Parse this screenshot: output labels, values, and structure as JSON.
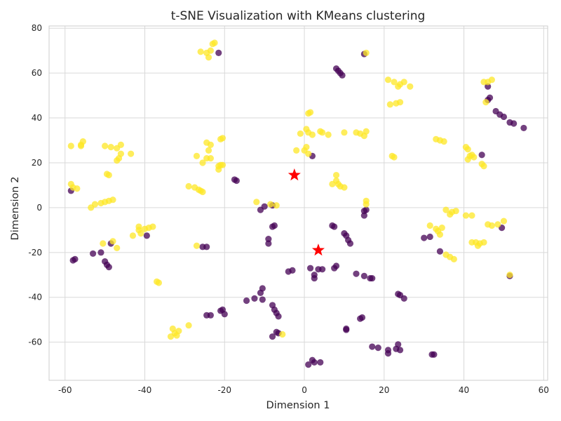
{
  "chart_data": {
    "type": "scatter",
    "title": "t-SNE Visualization with KMeans clustering",
    "xlabel": "Dimension 1",
    "ylabel": "Dimension 2",
    "xlim": [
      -64,
      61
    ],
    "ylim": [
      -77,
      81
    ],
    "xticks": [
      -60,
      -40,
      -20,
      0,
      20,
      40,
      60
    ],
    "yticks": [
      -60,
      -40,
      -20,
      0,
      20,
      40,
      60,
      80
    ],
    "grid": true,
    "colors": {
      "cluster_0": "#440154",
      "cluster_1": "#fde725",
      "centroid": "#ff0000",
      "grid": "#d9d9d9"
    },
    "series": [
      {
        "cluster": 0,
        "color": "#440154",
        "points": [
          [
            -21.5,
            69
          ],
          [
            8,
            62
          ],
          [
            8.5,
            61
          ],
          [
            9,
            60
          ],
          [
            9.5,
            59
          ],
          [
            15,
            68.5
          ],
          [
            46,
            54
          ],
          [
            46,
            48
          ],
          [
            46.5,
            49
          ],
          [
            48,
            43
          ],
          [
            49,
            41.5
          ],
          [
            50,
            40.5
          ],
          [
            51.5,
            38
          ],
          [
            52.5,
            37.5
          ],
          [
            55,
            35.5
          ],
          [
            44.5,
            23.5
          ],
          [
            2,
            23
          ],
          [
            -58.5,
            7.5
          ],
          [
            -17.5,
            12.5
          ],
          [
            -17,
            12
          ],
          [
            -11,
            -1
          ],
          [
            -10,
            0.5
          ],
          [
            -8,
            1
          ],
          [
            15,
            -1.5
          ],
          [
            15,
            -3.5
          ],
          [
            15.5,
            -1
          ],
          [
            -48.5,
            -16
          ],
          [
            -39.5,
            -12.5
          ],
          [
            -53,
            -20.5
          ],
          [
            -51,
            -20
          ],
          [
            -58,
            -23.5
          ],
          [
            -57.5,
            -23
          ],
          [
            -50,
            -24
          ],
          [
            -49.5,
            -25.5
          ],
          [
            -49,
            -26.5
          ],
          [
            -25.5,
            -17.5
          ],
          [
            -24.5,
            -17.5
          ],
          [
            -9,
            -14
          ],
          [
            -9,
            -16
          ],
          [
            -8,
            -8.5
          ],
          [
            -7.5,
            -8
          ],
          [
            7,
            -8
          ],
          [
            7.5,
            -8.5
          ],
          [
            10,
            -11.5
          ],
          [
            10.5,
            -12.5
          ],
          [
            11,
            -14.5
          ],
          [
            11.5,
            -16
          ],
          [
            30,
            -13.5
          ],
          [
            31.5,
            -13
          ],
          [
            34,
            -19.5
          ],
          [
            49.5,
            -9
          ],
          [
            -4,
            -28.5
          ],
          [
            -3,
            -28
          ],
          [
            1.5,
            -27
          ],
          [
            2.5,
            -30
          ],
          [
            2.5,
            -31.5
          ],
          [
            3.5,
            -27.5
          ],
          [
            4.5,
            -27.5
          ],
          [
            7.5,
            -27
          ],
          [
            8,
            -26
          ],
          [
            13,
            -29.5
          ],
          [
            15,
            -30.5
          ],
          [
            16.5,
            -31.5
          ],
          [
            17,
            -31.5
          ],
          [
            23.5,
            -38.5
          ],
          [
            24,
            -39
          ],
          [
            25,
            -40.5
          ],
          [
            51.5,
            -30.5
          ],
          [
            -14.5,
            -41.5
          ],
          [
            -12.5,
            -40.5
          ],
          [
            -11,
            -38
          ],
          [
            -10.5,
            -36
          ],
          [
            -10.5,
            -41
          ],
          [
            -8,
            -43.5
          ],
          [
            -7.5,
            -45.5
          ],
          [
            -7,
            -47
          ],
          [
            -6.5,
            -48.5
          ],
          [
            -21,
            -46
          ],
          [
            -20.5,
            -45.5
          ],
          [
            -20,
            -47.5
          ],
          [
            -24.5,
            -48
          ],
          [
            -23.5,
            -48
          ],
          [
            -8,
            -57.5
          ],
          [
            -7,
            -55.5
          ],
          [
            -6.5,
            -56
          ],
          [
            10.5,
            -54
          ],
          [
            10.5,
            -54.5
          ],
          [
            14,
            -49.5
          ],
          [
            14.5,
            -49
          ],
          [
            17,
            -62
          ],
          [
            18.5,
            -62.5
          ],
          [
            21,
            -63.5
          ],
          [
            21,
            -65
          ],
          [
            23,
            -63
          ],
          [
            23.5,
            -61
          ],
          [
            24,
            -63.5
          ],
          [
            32,
            -65.5
          ],
          [
            32.5,
            -65.5
          ],
          [
            1,
            -70
          ],
          [
            2,
            -68
          ],
          [
            2.5,
            -69
          ],
          [
            4,
            -69
          ]
        ]
      },
      {
        "cluster": 1,
        "color": "#fde725",
        "points": [
          [
            -26,
            69.5
          ],
          [
            -24.5,
            69
          ],
          [
            -24,
            67
          ],
          [
            -23.5,
            70
          ],
          [
            -23,
            73
          ],
          [
            -22.5,
            73.5
          ],
          [
            15.5,
            69
          ],
          [
            21,
            57
          ],
          [
            22.5,
            56
          ],
          [
            21.5,
            46
          ],
          [
            23,
            46.5
          ],
          [
            24,
            47
          ],
          [
            23.5,
            54
          ],
          [
            24,
            55
          ],
          [
            25,
            56
          ],
          [
            26.5,
            54
          ],
          [
            45,
            56
          ],
          [
            46,
            56
          ],
          [
            47,
            57
          ],
          [
            45.5,
            47
          ],
          [
            1,
            42
          ],
          [
            1.5,
            42.5
          ],
          [
            -1,
            33
          ],
          [
            0.5,
            35
          ],
          [
            1,
            33.5
          ],
          [
            2,
            32.5
          ],
          [
            4,
            34
          ],
          [
            4.5,
            33.5
          ],
          [
            6,
            32.5
          ],
          [
            10,
            33.5
          ],
          [
            13,
            33.5
          ],
          [
            14,
            33
          ],
          [
            15,
            32
          ],
          [
            15.5,
            34
          ],
          [
            -58.5,
            27.5
          ],
          [
            -56,
            28
          ],
          [
            -55.5,
            29.5
          ],
          [
            -56,
            27.5
          ],
          [
            -50,
            27.5
          ],
          [
            -48.5,
            27
          ],
          [
            -47,
            26.5
          ],
          [
            -46,
            28
          ],
          [
            -46.5,
            22
          ],
          [
            -47,
            21
          ],
          [
            -46,
            24
          ],
          [
            -43.5,
            24
          ],
          [
            -49.5,
            15
          ],
          [
            -49,
            14.5
          ],
          [
            -24.5,
            29
          ],
          [
            -23.5,
            28
          ],
          [
            -24,
            25.5
          ],
          [
            -24.5,
            22
          ],
          [
            -23.5,
            22
          ],
          [
            -25.5,
            20
          ],
          [
            -27,
            23
          ],
          [
            -21,
            30.5
          ],
          [
            -20.5,
            31
          ],
          [
            -21,
            19
          ],
          [
            -21.5,
            18.5
          ],
          [
            -21.5,
            17
          ],
          [
            -20.5,
            19
          ],
          [
            -2,
            25.5
          ],
          [
            0,
            25.5
          ],
          [
            0.5,
            27
          ],
          [
            1,
            24
          ],
          [
            22,
            23
          ],
          [
            22.5,
            22.5
          ],
          [
            33,
            30.5
          ],
          [
            34,
            30
          ],
          [
            35,
            29.5
          ],
          [
            40.5,
            27
          ],
          [
            41,
            26
          ],
          [
            41.5,
            23
          ],
          [
            41,
            21.5
          ],
          [
            42,
            23.5
          ],
          [
            42.5,
            22.5
          ],
          [
            44.5,
            19.5
          ],
          [
            45,
            18.5
          ],
          [
            8,
            14.5
          ],
          [
            8,
            12
          ],
          [
            7,
            10.5
          ],
          [
            8.5,
            10.5
          ],
          [
            9,
            9.5
          ],
          [
            10,
            9
          ],
          [
            -58.5,
            10.5
          ],
          [
            -58,
            9
          ],
          [
            -57,
            8.5
          ],
          [
            -29,
            9.5
          ],
          [
            -27.5,
            9
          ],
          [
            -26.5,
            8
          ],
          [
            -26,
            7.5
          ],
          [
            -25.5,
            7
          ],
          [
            -53.5,
            0
          ],
          [
            -52.5,
            1.5
          ],
          [
            -51,
            2
          ],
          [
            -50,
            2.5
          ],
          [
            -49,
            3
          ],
          [
            -48,
            3.5
          ],
          [
            -12,
            2.5
          ],
          [
            -8.5,
            1.5
          ],
          [
            -7,
            1
          ],
          [
            15.5,
            3
          ],
          [
            15.5,
            1.5
          ],
          [
            31.5,
            -8
          ],
          [
            33,
            -9.5
          ],
          [
            33.5,
            -10.5
          ],
          [
            34.5,
            -9
          ],
          [
            34,
            -12
          ],
          [
            35.5,
            -1
          ],
          [
            36.5,
            -3
          ],
          [
            37,
            -2
          ],
          [
            38,
            -1.5
          ],
          [
            40.5,
            -3.5
          ],
          [
            42,
            -3.5
          ],
          [
            42,
            -15.5
          ],
          [
            43,
            -15.5
          ],
          [
            44,
            -16
          ],
          [
            45,
            -15.5
          ],
          [
            46,
            -7.5
          ],
          [
            47,
            -8
          ],
          [
            48.5,
            -7.5
          ],
          [
            50,
            -6
          ],
          [
            43.5,
            -17
          ],
          [
            35.5,
            -21
          ],
          [
            36.5,
            -22
          ],
          [
            37.5,
            -23
          ],
          [
            -50.5,
            -16
          ],
          [
            -48,
            -15
          ],
          [
            -47,
            -18
          ],
          [
            -41.5,
            -8.5
          ],
          [
            -41.5,
            -10
          ],
          [
            -41,
            -11.5
          ],
          [
            -40,
            -9.5
          ],
          [
            -39,
            -9
          ],
          [
            -38,
            -8.5
          ],
          [
            -43,
            -12.5
          ],
          [
            -27,
            -17
          ],
          [
            -37,
            -33
          ],
          [
            -36.5,
            -33.5
          ],
          [
            51.5,
            -30
          ],
          [
            -29,
            -52.5
          ],
          [
            -33,
            -54
          ],
          [
            -32.5,
            -56
          ],
          [
            -31.5,
            -55
          ],
          [
            -33.5,
            -57.5
          ],
          [
            -32,
            -57
          ],
          [
            -5.5,
            -56.5
          ]
        ]
      }
    ],
    "centroids": [
      [
        -2.5,
        14.5
      ],
      [
        3.5,
        -19
      ]
    ]
  }
}
